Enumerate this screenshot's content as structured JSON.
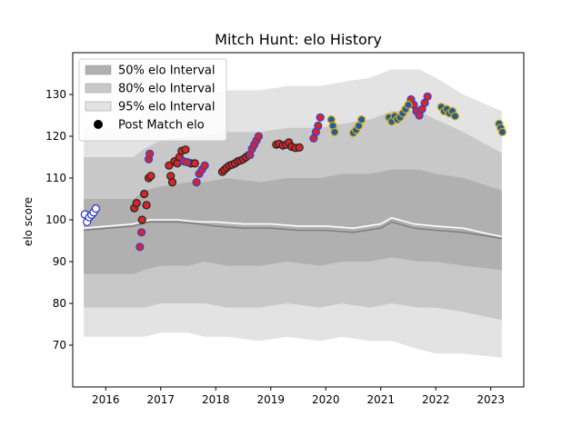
{
  "chart_data": {
    "type": "scatter",
    "title": "Mitch Hunt: elo History",
    "xlabel": "",
    "ylabel": "elo score",
    "xlim": [
      2015.4,
      2023.6
    ],
    "ylim": [
      60,
      140
    ],
    "x_ticks": [
      2016,
      2017,
      2018,
      2019,
      2020,
      2021,
      2022,
      2023
    ],
    "x_tick_labels": [
      "2016",
      "2017",
      "2018",
      "2019",
      "2020",
      "2021",
      "2022",
      "2023"
    ],
    "y_ticks": [
      70,
      80,
      90,
      100,
      110,
      120,
      130
    ],
    "y_tick_labels": [
      "70",
      "80",
      "90",
      "100",
      "110",
      "120",
      "130"
    ],
    "grid": false,
    "legend_position": "top-left",
    "legend": [
      {
        "label": "50% elo Interval",
        "kind": "band",
        "color": "#b0b0b0"
      },
      {
        "label": "80% elo Interval",
        "kind": "band",
        "color": "#c8c8c8"
      },
      {
        "label": "95% elo Interval",
        "kind": "band",
        "color": "#e3e3e3"
      },
      {
        "label": "Post Match elo",
        "kind": "marker",
        "color": "#000000"
      }
    ],
    "intervals": {
      "x": [
        2015.6,
        2016.5,
        2016.7,
        2017.0,
        2017.5,
        2017.8,
        2018.2,
        2018.8,
        2019.3,
        2019.9,
        2020.3,
        2020.8,
        2021.2,
        2021.7,
        2022.0,
        2022.5,
        2023.2
      ],
      "upper95": [
        122,
        122,
        126,
        128,
        130,
        130,
        131,
        131,
        132,
        132,
        133,
        134,
        136,
        136,
        134,
        130,
        126
      ],
      "upper80": [
        115,
        115,
        117,
        119,
        120,
        120,
        121,
        121,
        122,
        122,
        123,
        124,
        126,
        126,
        124,
        121,
        116
      ],
      "upper50": [
        105,
        105,
        107,
        108,
        109,
        109,
        110,
        109,
        110,
        110,
        111,
        111,
        112,
        112,
        111,
        110,
        107
      ],
      "lower50": [
        87,
        87,
        88,
        89,
        89,
        90,
        89,
        89,
        90,
        89,
        90,
        90,
        91,
        90,
        90,
        89,
        88
      ],
      "lower80": [
        79,
        79,
        79,
        80,
        80,
        80,
        79,
        79,
        80,
        79,
        80,
        79,
        80,
        79,
        79,
        78,
        76
      ],
      "lower95": [
        72,
        72,
        72,
        73,
        73,
        72,
        72,
        71,
        72,
        71,
        72,
        71,
        71,
        69,
        68,
        68,
        67
      ]
    },
    "median_line": {
      "x": [
        2015.6,
        2016.5,
        2016.8,
        2017.3,
        2017.7,
        2018.0,
        2018.5,
        2019.0,
        2019.5,
        2020.0,
        2020.5,
        2021.0,
        2021.2,
        2021.6,
        2022.0,
        2022.5,
        2023.0,
        2023.2
      ],
      "y": [
        97.5,
        98.5,
        99.5,
        99.5,
        99.0,
        98.5,
        98.0,
        98.0,
        97.5,
        97.5,
        97.0,
        98.0,
        99.5,
        98.0,
        97.5,
        97.0,
        96.0,
        95.5
      ],
      "color": "#808080"
    },
    "mean_line": {
      "x": [
        2015.6,
        2016.5,
        2016.8,
        2017.3,
        2017.7,
        2018.0,
        2018.5,
        2019.0,
        2019.5,
        2020.0,
        2020.5,
        2021.0,
        2021.2,
        2021.6,
        2022.0,
        2022.5,
        2023.0,
        2023.2
      ],
      "y": [
        98.0,
        99.0,
        100.0,
        100.0,
        99.5,
        99.5,
        99.0,
        99.0,
        98.5,
        98.5,
        98.0,
        99.0,
        100.5,
        99.0,
        98.5,
        98.0,
        96.5,
        96.0
      ],
      "color": "#ffffff"
    },
    "series": [
      {
        "name": "",
        "fill": "#ffffff",
        "edge": "#1f2fd0",
        "x": [
          2015.62,
          2015.66,
          2015.7,
          2015.74,
          2015.78,
          2015.82
        ],
        "y": [
          101.3,
          99.5,
          100.6,
          101.2,
          101.8,
          102.7
        ]
      },
      {
        "name": "",
        "fill": "#d62728",
        "edge": "#222222",
        "x": [
          2016.52,
          2016.56,
          2016.66,
          2016.7,
          2016.74,
          2016.78,
          2016.82,
          2017.15,
          2017.18,
          2017.21,
          2017.25,
          2017.3,
          2017.34,
          2017.38,
          2017.45,
          2017.55,
          2017.62,
          2018.12,
          2018.16,
          2018.2,
          2018.25,
          2018.3,
          2018.35,
          2018.4,
          2018.45,
          2018.5,
          2018.55,
          2018.6,
          2019.1,
          2019.15,
          2019.22,
          2019.28,
          2019.33,
          2019.38,
          2019.45,
          2019.52
        ],
        "y": [
          102.8,
          104.0,
          100.0,
          106.2,
          103.5,
          110.0,
          110.5,
          113.0,
          110.5,
          109.0,
          114.0,
          113.5,
          115.0,
          116.5,
          116.8,
          113.5,
          113.5,
          111.5,
          112.0,
          112.5,
          113.0,
          113.2,
          113.5,
          114.0,
          114.2,
          114.5,
          115.0,
          115.5,
          118.0,
          118.2,
          117.8,
          118.0,
          118.5,
          117.5,
          117.2,
          117.3
        ]
      },
      {
        "name": "",
        "fill": "#d62728",
        "edge": "#2f3fd8",
        "x": [
          2016.62,
          2016.65,
          2016.78,
          2016.8,
          2017.42,
          2017.48,
          2017.65,
          2017.7,
          2017.75,
          2017.8,
          2018.62,
          2018.66,
          2018.7,
          2018.74,
          2018.78,
          2019.78,
          2019.82,
          2019.86,
          2019.9,
          2021.55,
          2021.6,
          2021.65,
          2021.7,
          2021.75,
          2021.8,
          2021.85
        ],
        "y": [
          93.5,
          97.0,
          114.5,
          115.8,
          114.0,
          113.8,
          109.0,
          111.0,
          112.0,
          113.0,
          115.5,
          117.0,
          118.0,
          119.0,
          120.0,
          119.5,
          121.0,
          122.5,
          124.5,
          128.8,
          127.5,
          126.0,
          125.0,
          126.5,
          128.0,
          129.5
        ]
      },
      {
        "name": "",
        "fill": "#1f5fa0",
        "edge": "#e0a800",
        "x": [
          2020.1,
          2020.13,
          2020.16,
          2020.5,
          2020.55,
          2020.6,
          2020.65,
          2021.15,
          2021.2,
          2021.25,
          2021.3,
          2021.35,
          2021.4,
          2021.45,
          2021.5,
          2022.1,
          2022.15,
          2022.2,
          2022.25,
          2022.3,
          2022.35,
          2023.15,
          2023.18,
          2023.21
        ],
        "y": [
          124.0,
          122.5,
          121.0,
          120.8,
          121.5,
          122.5,
          124.0,
          124.5,
          123.5,
          124.8,
          124.0,
          124.5,
          125.5,
          126.5,
          127.5,
          127.0,
          126.0,
          126.5,
          125.5,
          126.0,
          124.8,
          123.0,
          122.0,
          121.0
        ]
      }
    ]
  }
}
